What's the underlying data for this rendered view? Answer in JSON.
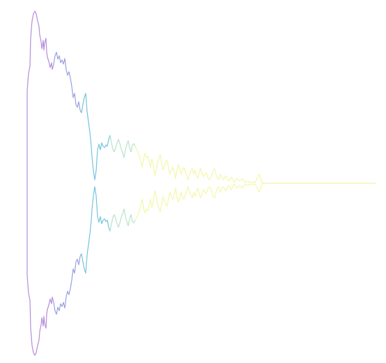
{
  "figure": {
    "background": "#ffffff",
    "colors": {
      "segment_1": "#b58bdc",
      "segment_2": "#9a9fe0",
      "segment_3": "#74c3dc",
      "segment_4": "#b8e3c8",
      "segment_5": "#f4f7a8",
      "tail": "#f3f2a6"
    }
  }
}
